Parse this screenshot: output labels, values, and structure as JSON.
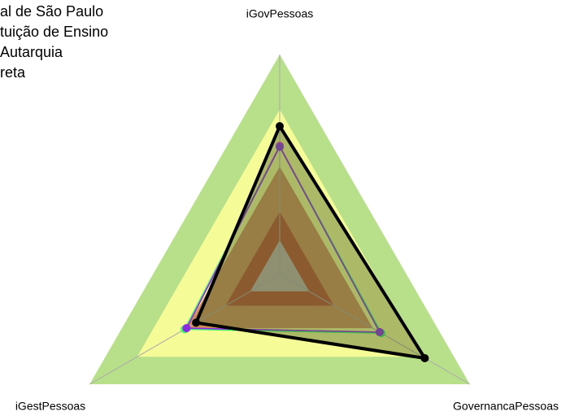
{
  "chart_data": {
    "type": "radar",
    "categories": [
      "iGovPessoas",
      "GovernancaPessoas",
      "iGestPessoas"
    ],
    "rlim": [
      0,
      1
    ],
    "bands": [
      {
        "value": 1,
        "color": "#b8e08a"
      },
      {
        "value": 0.75,
        "color": "#ffff99"
      },
      {
        "value": 0.49,
        "color": "#c8794a"
      },
      {
        "value": 0.285,
        "color": "#b5442a"
      },
      {
        "value": 0.155,
        "color": "#c0c0c0"
      }
    ],
    "series": [
      {
        "name": "al de São Paulo",
        "color": "#33ff66",
        "values": [
          0.585,
          0.535,
          0.5
        ]
      },
      {
        "name": "tuição de Ensino",
        "color": "#ff33cc",
        "values": [
          0.585,
          0.525,
          0.49
        ]
      },
      {
        "name": "Autarquia",
        "color": "#8a2be2",
        "values": [
          0.58,
          0.526,
          0.49
        ]
      },
      {
        "name": "reta",
        "color": "#000000",
        "values": [
          0.674,
          0.763,
          0.44
        ]
      }
    ]
  }
}
